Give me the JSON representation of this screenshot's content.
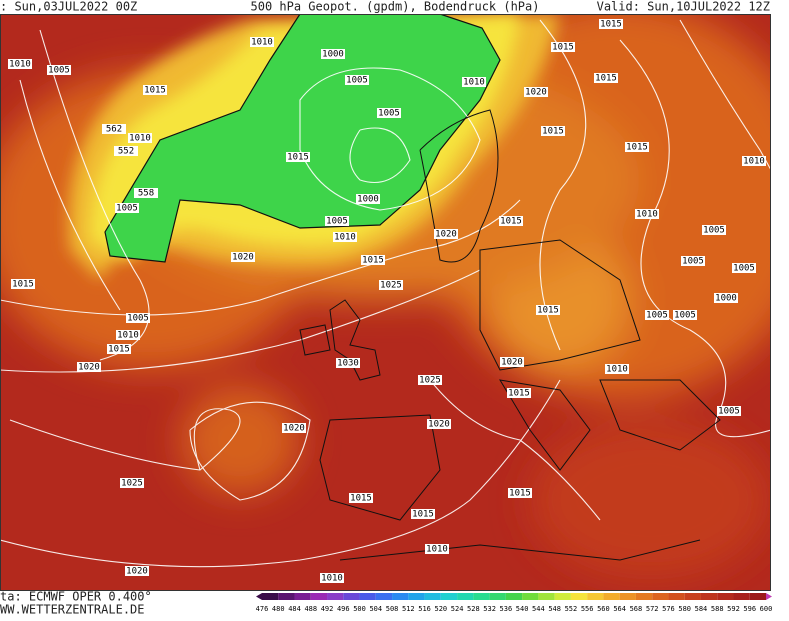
{
  "header": {
    "left": ": Sun,03JUL2022 00Z",
    "center": "500 hPa Geopot. (gpdm), Bodendruck (hPa)",
    "right": "Valid: Sun,10JUL2022 12Z"
  },
  "footer": {
    "source": "ta: ECMWF OPER 0.400°",
    "site": "WW.WETTERZENTRALE.DE"
  },
  "isobar_labels": [
    "1010",
    "1000",
    "1005",
    "1010",
    "1005",
    "1015",
    "1015",
    "1015",
    "1020",
    "1015",
    "1015",
    "1010",
    "1010",
    "1005",
    "1015",
    "562",
    "1010",
    "552",
    "1015",
    "1000",
    "1005",
    "1005",
    "558",
    "1010",
    "1020",
    "1015",
    "1020",
    "1015",
    "1010",
    "1005",
    "1005",
    "1005",
    "1025",
    "1000",
    "1015",
    "1005",
    "1010",
    "1015",
    "1015",
    "1005",
    "1005",
    "1020",
    "1030",
    "1020",
    "1025",
    "1010",
    "1015",
    "1005",
    "1020",
    "1020",
    "1025",
    "1015",
    "1015",
    "1015",
    "1010",
    "1020",
    "1010"
  ],
  "scale": [
    476,
    480,
    484,
    488,
    492,
    496,
    500,
    504,
    508,
    512,
    516,
    520,
    524,
    528,
    532,
    536,
    540,
    544,
    548,
    552,
    556,
    560,
    564,
    568,
    572,
    576,
    580,
    584,
    588,
    592,
    596,
    600
  ]
}
